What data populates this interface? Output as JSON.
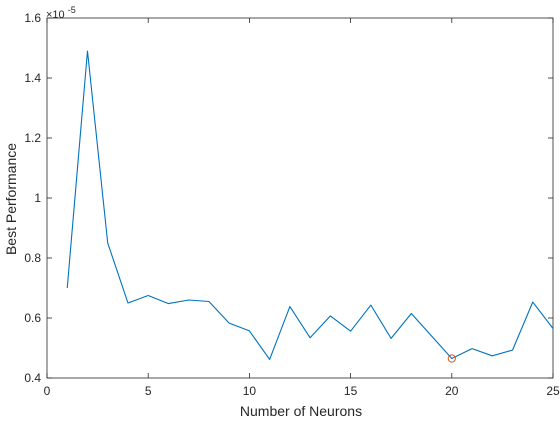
{
  "chart_data": {
    "type": "line",
    "title": "",
    "xlabel": "Number of Neurons",
    "ylabel": "Best Performance",
    "exponent_label": "×10",
    "exponent_power": "-5",
    "xlim": [
      0,
      25
    ],
    "ylim": [
      0.4,
      1.6
    ],
    "xticks": [
      0,
      5,
      10,
      15,
      20,
      25
    ],
    "xtick_labels": [
      "0",
      "5",
      "10",
      "15",
      "20",
      "25"
    ],
    "yticks": [
      0.4,
      0.6,
      0.8,
      1.0,
      1.2,
      1.4,
      1.6
    ],
    "ytick_labels": [
      "0.4",
      "0.6",
      "0.8",
      "1",
      "1.2",
      "1.4",
      "1.6"
    ],
    "grid": false,
    "series_color": "#0072bd",
    "marker_color": "#d95319",
    "series": [
      {
        "x": [
          1,
          2,
          3,
          4,
          5,
          6,
          7,
          8,
          9,
          10,
          11,
          12,
          13,
          14,
          15,
          16,
          17,
          18,
          19,
          20,
          21,
          22,
          23,
          24,
          25
        ],
        "values": [
          0.7,
          1.49,
          0.85,
          0.65,
          0.675,
          0.648,
          0.66,
          0.655,
          0.583,
          0.557,
          0.462,
          0.638,
          0.534,
          0.607,
          0.556,
          0.643,
          0.532,
          0.615,
          0.54,
          0.465,
          0.498,
          0.474,
          0.493,
          0.653,
          0.565
        ]
      }
    ],
    "highlight_point": {
      "x": 20,
      "y": 0.465,
      "marker": "circle"
    }
  }
}
